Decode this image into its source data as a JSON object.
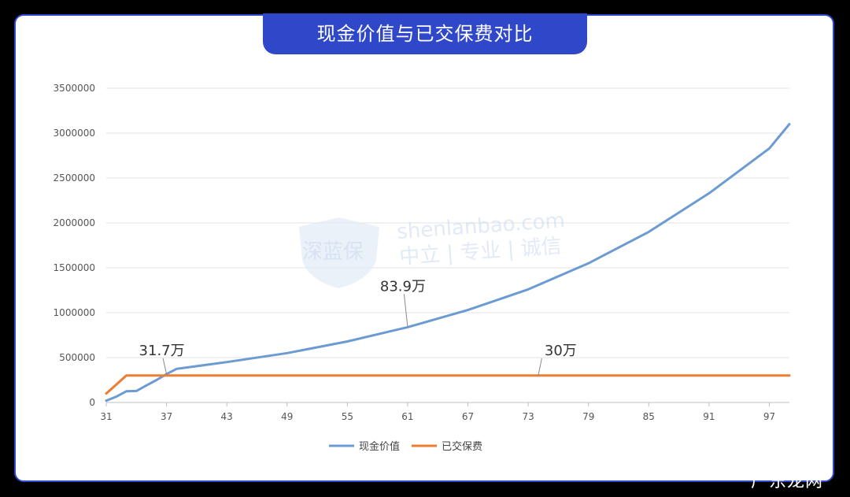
{
  "title": "现金价值与已交保费对比",
  "watermark": {
    "line1": "shenlanbao.com",
    "line2": "中立 | 专业 | 诚信",
    "logo": "深蓝保"
  },
  "corner_mark": "广东龙网",
  "colors": {
    "frame": "#2f47c9",
    "cash_value": "#6b9bd2",
    "premium": "#ed7d31"
  },
  "chart_data": {
    "type": "line",
    "title": "现金价值与已交保费对比",
    "xlabel": "",
    "ylabel": "",
    "xlim": [
      31,
      99
    ],
    "ylim": [
      0,
      3500000
    ],
    "xticks": [
      31,
      37,
      43,
      49,
      55,
      61,
      67,
      73,
      79,
      85,
      91,
      97
    ],
    "yticks": [
      0,
      500000,
      1000000,
      1500000,
      2000000,
      2500000,
      3000000,
      3500000
    ],
    "grid": true,
    "legend": "bottom",
    "series": [
      {
        "name": "现金价值",
        "x": [
          31,
          32,
          33,
          34,
          35,
          36,
          37,
          38,
          43,
          49,
          55,
          61,
          67,
          73,
          79,
          85,
          91,
          97,
          99
        ],
        "values": [
          20000,
          65000,
          125000,
          128000,
          190000,
          250000,
          317000,
          375000,
          450000,
          550000,
          680000,
          839000,
          1030000,
          1260000,
          1550000,
          1900000,
          2330000,
          2830000,
          3100000
        ]
      },
      {
        "name": "已交保费",
        "x": [
          31,
          32,
          33,
          34,
          37,
          61,
          73,
          99
        ],
        "values": [
          100000,
          200000,
          300000,
          300000,
          300000,
          300000,
          300000,
          300000
        ]
      }
    ],
    "annotations": [
      {
        "text": "31.7万",
        "x": 37,
        "y": 317000,
        "series": "现金价值"
      },
      {
        "text": "83.9万",
        "x": 61,
        "y": 839000,
        "series": "现金价值"
      },
      {
        "text": "30万",
        "x": 74,
        "y": 300000,
        "series": "已交保费"
      }
    ]
  }
}
